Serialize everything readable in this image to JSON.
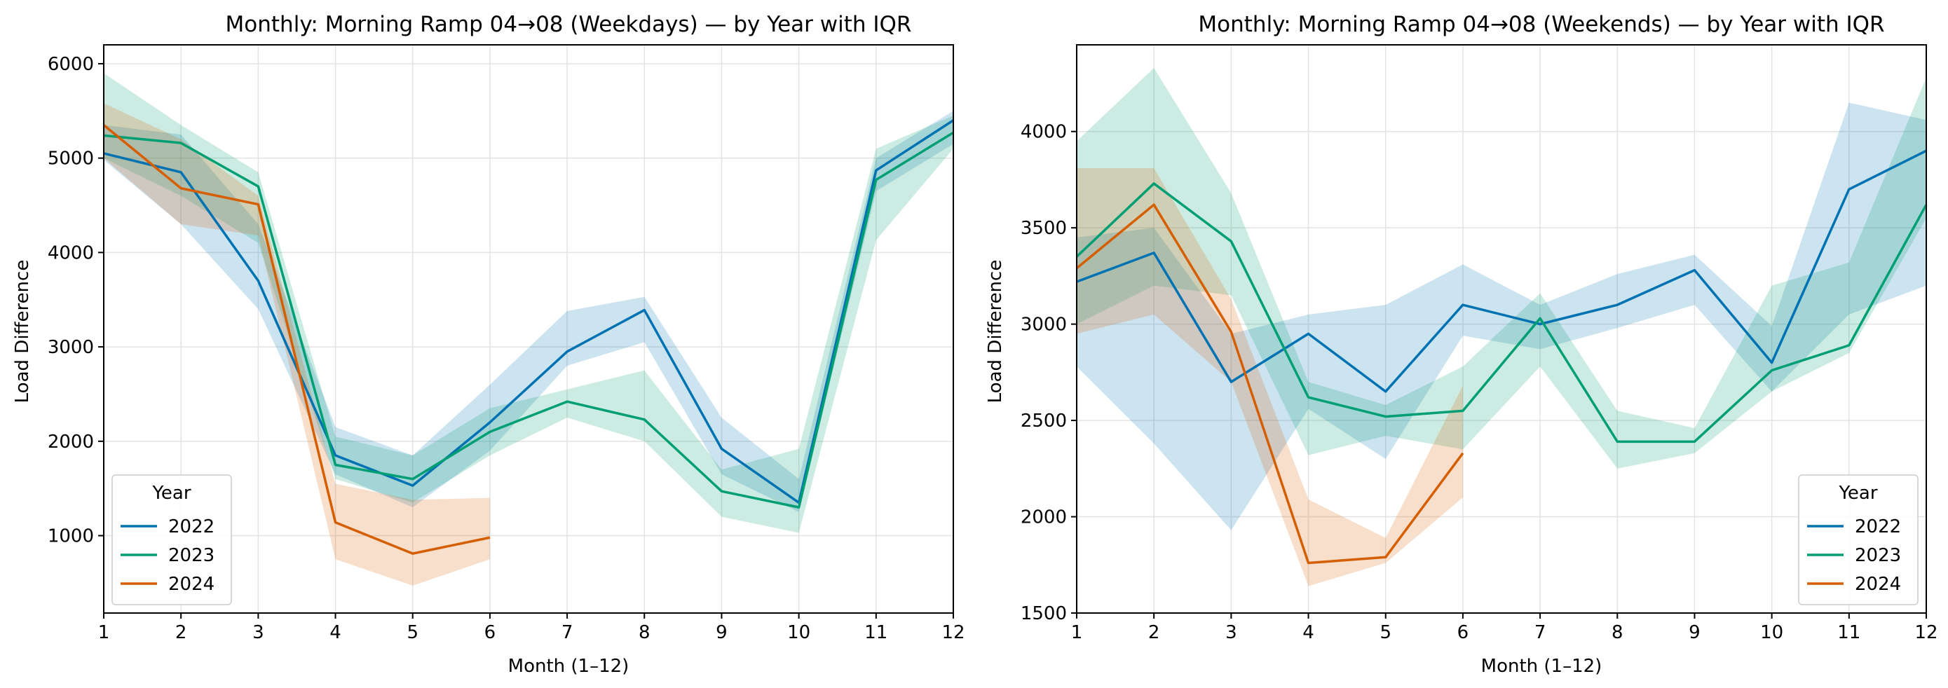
{
  "chart_data": [
    {
      "type": "line",
      "title": "Monthly: Morning Ramp 04→08 (Weekdays) — by Year with IQR",
      "xlabel": "Month (1–12)",
      "ylabel": "Load Difference",
      "xlim": [
        1,
        12
      ],
      "ylim": [
        180,
        6200
      ],
      "xticks": [
        1,
        2,
        3,
        4,
        5,
        6,
        7,
        8,
        9,
        10,
        11,
        12
      ],
      "yticks": [
        1000,
        2000,
        3000,
        4000,
        5000,
        6000
      ],
      "grid": true,
      "legend": {
        "title": "Year",
        "position": "lower-left"
      },
      "series": [
        {
          "name": "2022",
          "color": "#0072B2",
          "x": [
            1,
            2,
            3,
            4,
            5,
            6,
            7,
            8,
            9,
            10,
            11,
            12
          ],
          "y": [
            5050,
            4850,
            3700,
            1850,
            1530,
            2200,
            2950,
            3390,
            1920,
            1350,
            4870,
            5400
          ],
          "q1": [
            4980,
            4300,
            3400,
            1650,
            1300,
            1900,
            2800,
            3050,
            1650,
            1250,
            4650,
            5150
          ],
          "q3": [
            5350,
            5250,
            4300,
            2150,
            1850,
            2600,
            3380,
            3530,
            2250,
            1600,
            5000,
            5500
          ]
        },
        {
          "name": "2023",
          "color": "#009E73",
          "x": [
            1,
            2,
            3,
            4,
            5,
            6,
            7,
            8,
            9,
            10,
            11,
            12
          ],
          "y": [
            5240,
            5160,
            4700,
            1750,
            1600,
            2100,
            2420,
            2230,
            1470,
            1300,
            4770,
            5270
          ],
          "q1": [
            5000,
            4600,
            4100,
            1600,
            1350,
            1850,
            2250,
            2000,
            1200,
            1030,
            4130,
            5100
          ],
          "q3": [
            5900,
            5350,
            4850,
            2050,
            1850,
            2350,
            2550,
            2750,
            1700,
            1920,
            5100,
            5450
          ]
        },
        {
          "name": "2024",
          "color": "#D55E00",
          "x": [
            1,
            2,
            3,
            4,
            5,
            6
          ],
          "y": [
            5350,
            4680,
            4510,
            1140,
            810,
            980
          ],
          "q1": [
            5000,
            4300,
            4180,
            750,
            470,
            750
          ],
          "q3": [
            5580,
            5200,
            4600,
            1550,
            1380,
            1400
          ]
        }
      ]
    },
    {
      "type": "line",
      "title": "Monthly: Morning Ramp 04→08 (Weekends) — by Year with IQR",
      "xlabel": "Month (1–12)",
      "ylabel": "Load Difference",
      "xlim": [
        1,
        12
      ],
      "ylim": [
        1500,
        4450
      ],
      "xticks": [
        1,
        2,
        3,
        4,
        5,
        6,
        7,
        8,
        9,
        10,
        11,
        12
      ],
      "yticks": [
        1500,
        2000,
        2500,
        3000,
        3500,
        4000
      ],
      "grid": true,
      "legend": {
        "title": "Year",
        "position": "lower-right"
      },
      "series": [
        {
          "name": "2022",
          "color": "#0072B2",
          "x": [
            1,
            2,
            3,
            4,
            5,
            6,
            7,
            8,
            9,
            10,
            11,
            12
          ],
          "y": [
            3220,
            3370,
            2700,
            2950,
            2650,
            3100,
            3000,
            3100,
            3280,
            2800,
            3700,
            3900
          ],
          "q1": [
            2780,
            2380,
            1930,
            2560,
            2300,
            2940,
            2870,
            2980,
            3100,
            2650,
            3050,
            3200
          ],
          "q3": [
            3450,
            3500,
            2950,
            3050,
            3100,
            3310,
            3100,
            3260,
            3360,
            2990,
            4150,
            4060
          ]
        },
        {
          "name": "2023",
          "color": "#009E73",
          "x": [
            1,
            2,
            3,
            4,
            5,
            6,
            7,
            8,
            9,
            10,
            11,
            12
          ],
          "y": [
            3350,
            3730,
            3430,
            2620,
            2520,
            2550,
            3030,
            2390,
            2390,
            2760,
            2890,
            3620
          ],
          "q1": [
            3000,
            3200,
            3150,
            2320,
            2420,
            2350,
            2780,
            2250,
            2330,
            2650,
            2850,
            3550
          ],
          "q3": [
            3950,
            4330,
            3680,
            2700,
            2580,
            2780,
            3160,
            2550,
            2460,
            3200,
            3320,
            4280
          ]
        },
        {
          "name": "2024",
          "color": "#D55E00",
          "x": [
            1,
            2,
            3,
            4,
            5,
            6
          ],
          "y": [
            3290,
            3620,
            2960,
            1760,
            1790,
            2330
          ],
          "q1": [
            2950,
            3050,
            2700,
            1640,
            1760,
            2100
          ],
          "q3": [
            3810,
            3810,
            3130,
            2090,
            1890,
            2680
          ]
        }
      ]
    }
  ]
}
